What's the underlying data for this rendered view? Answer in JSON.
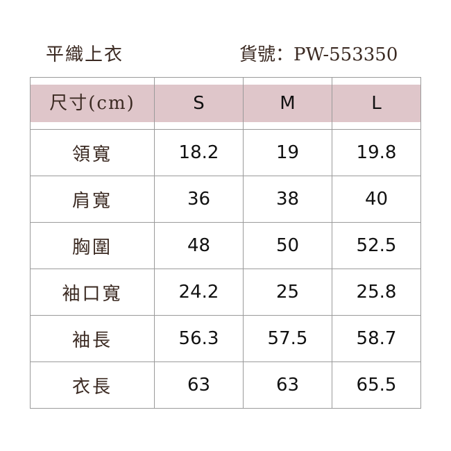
{
  "title": "平織上衣",
  "product_code": "貨號：PW-553350",
  "colors": {
    "header_bg": "#dfc6ca",
    "label_text": "#3b2a22",
    "border": "#9a9a9a"
  },
  "table": {
    "headers": [
      "尺寸(cm)",
      "S",
      "M",
      "L"
    ],
    "rows": [
      [
        "領寬",
        "18.2",
        "19",
        "19.8"
      ],
      [
        "肩寬",
        "36",
        "38",
        "40"
      ],
      [
        "胸圍",
        "48",
        "50",
        "52.5"
      ],
      [
        "袖口寬",
        "24.2",
        "25",
        "25.8"
      ],
      [
        "袖長",
        "56.3",
        "57.5",
        "58.7"
      ],
      [
        "衣長",
        "63",
        "63",
        "65.5"
      ]
    ]
  }
}
